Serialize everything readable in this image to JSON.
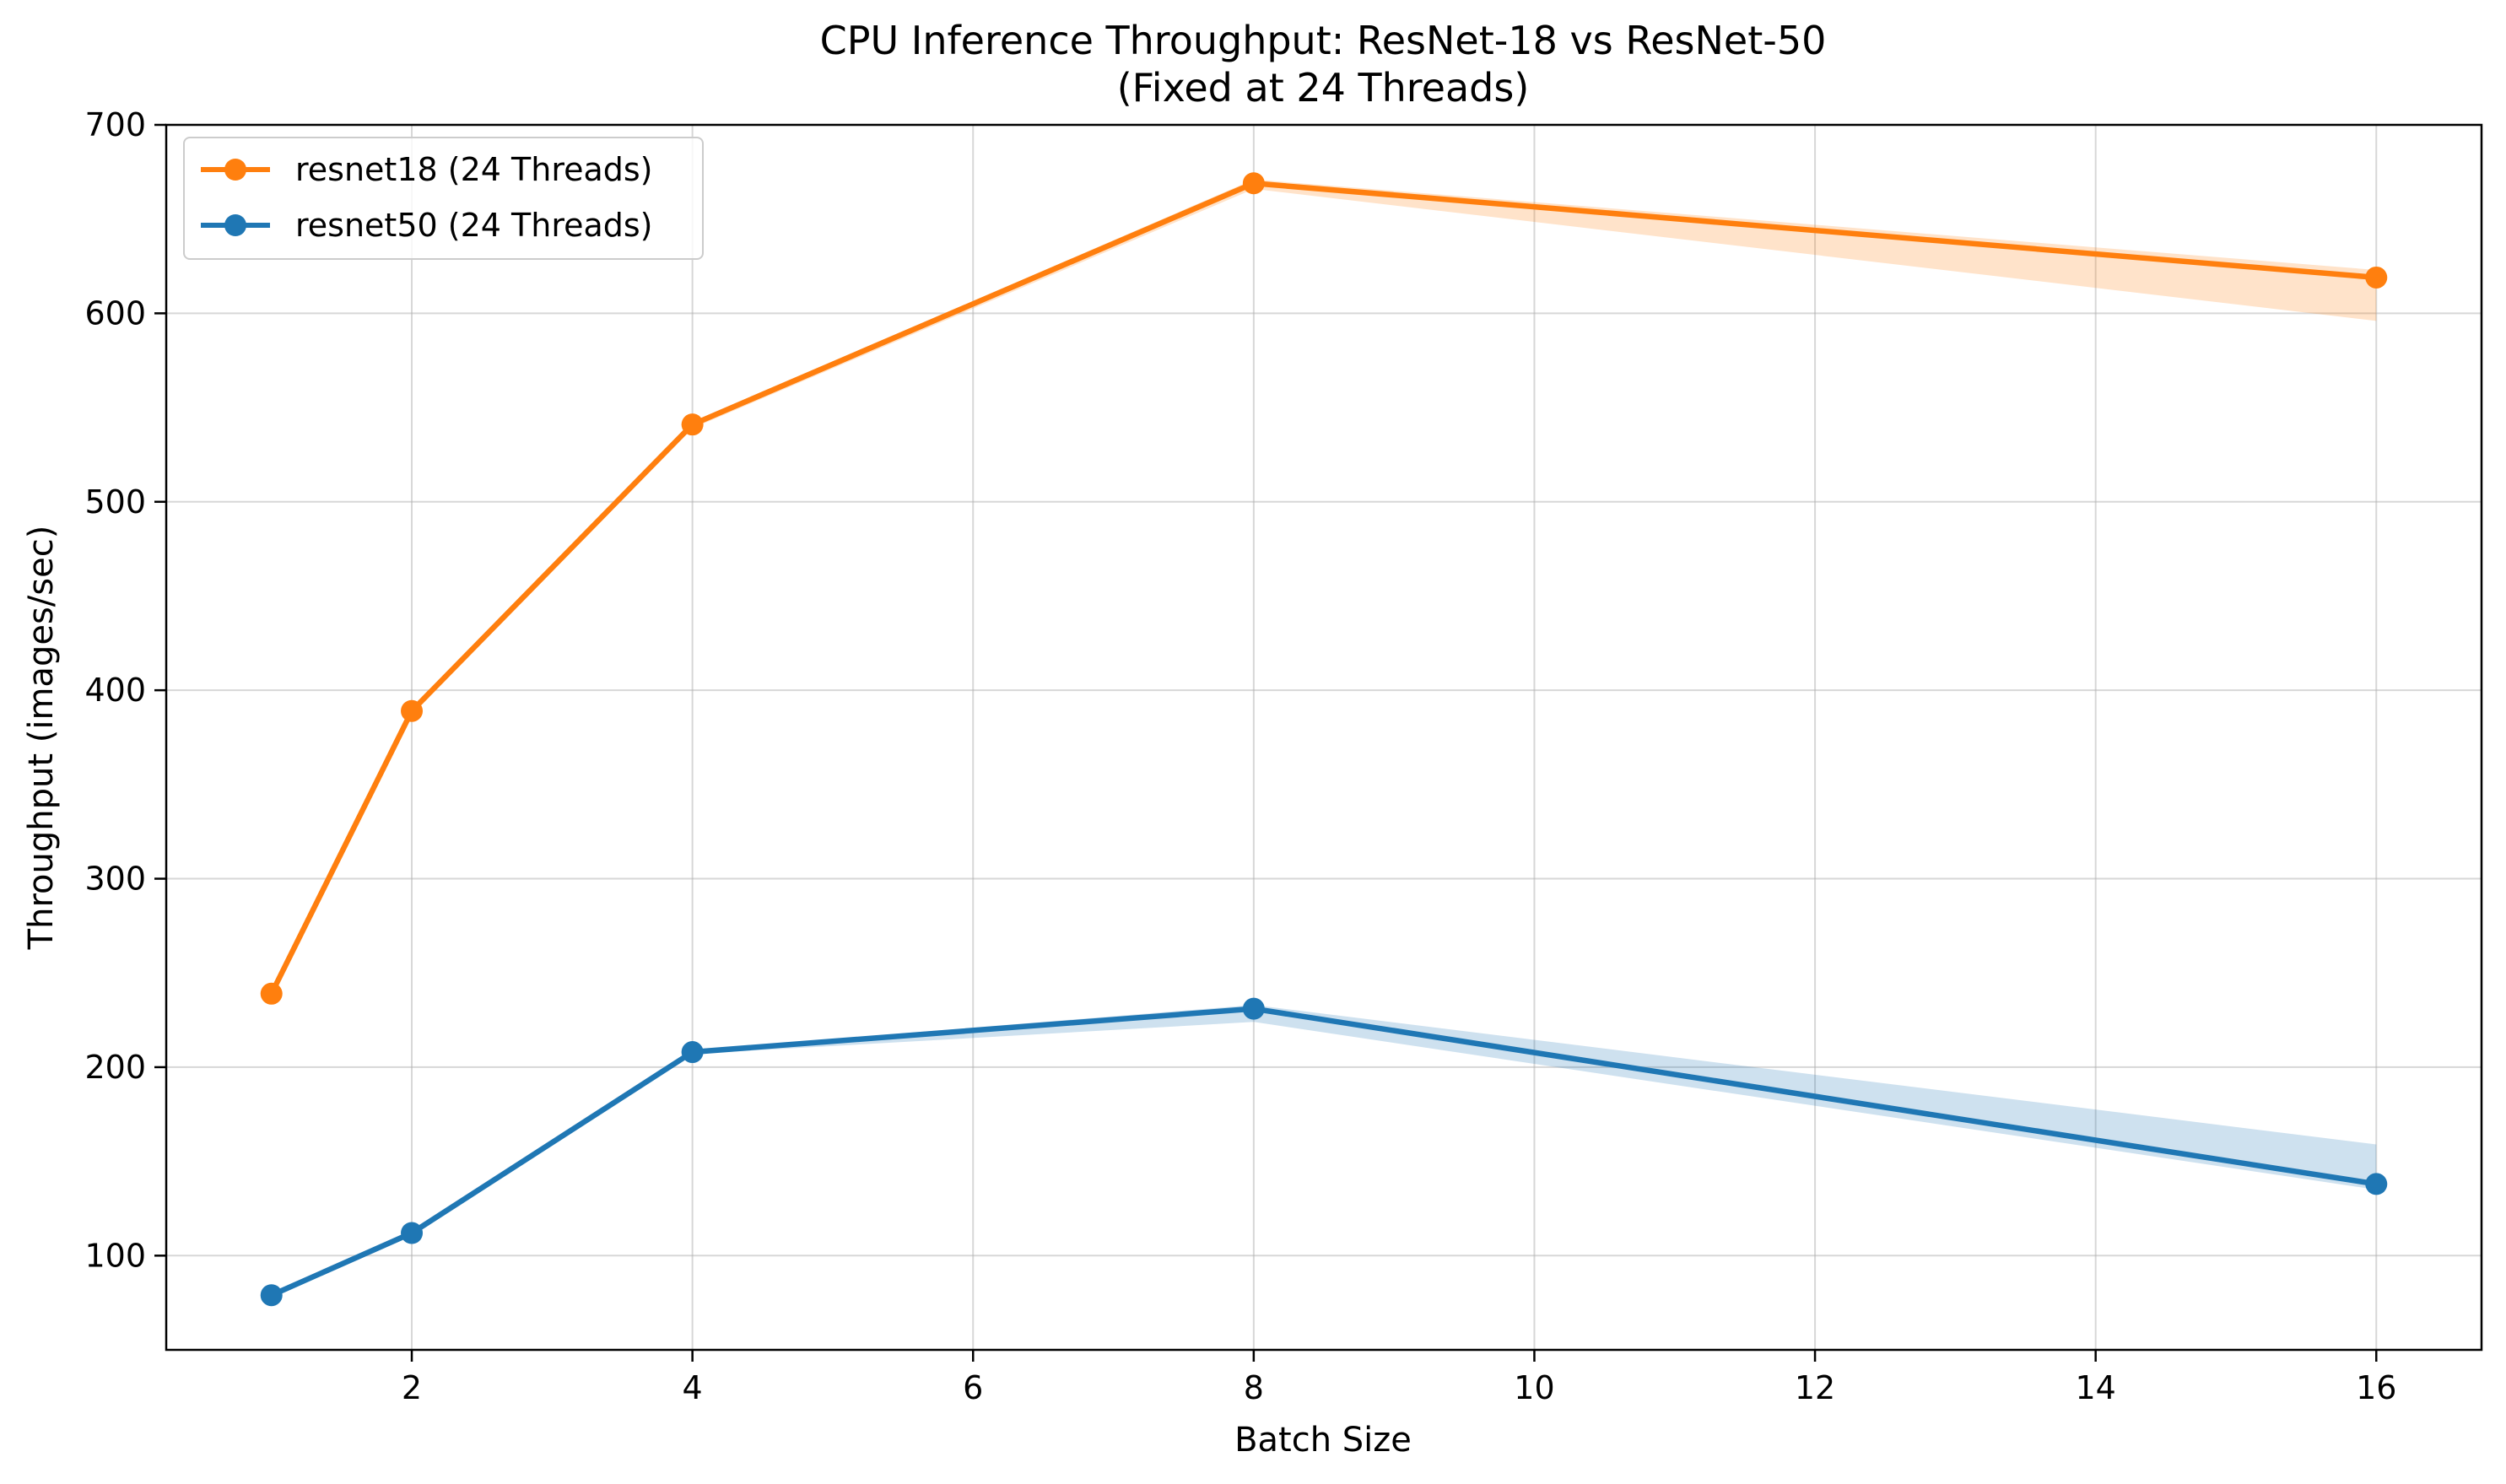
{
  "chart_data": {
    "type": "line",
    "title": "CPU Inference Throughput: ResNet-18 vs ResNet-50",
    "subtitle": "(Fixed at 24 Threads)",
    "xlabel": "Batch Size",
    "ylabel": "Throughput (images/sec)",
    "xlim": [
      0.25,
      16.75
    ],
    "ylim": [
      50,
      700
    ],
    "xticks": [
      2,
      4,
      6,
      8,
      10,
      12,
      14,
      16
    ],
    "yticks": [
      100,
      200,
      300,
      400,
      500,
      600,
      700
    ],
    "grid": true,
    "legend_position": "top-left",
    "x": [
      1,
      2,
      4,
      8,
      16
    ],
    "series": [
      {
        "name": "resnet18 (24 Threads)",
        "color": "#ff7f0e",
        "values": [
          239,
          389,
          541,
          669,
          619
        ],
        "band_low": [
          239,
          388,
          539,
          666,
          596
        ],
        "band_high": [
          240,
          390,
          542,
          671,
          623
        ]
      },
      {
        "name": "resnet50 (24 Threads)",
        "color": "#1f77b4",
        "values": [
          79,
          112,
          208,
          231,
          138
        ],
        "band_low": [
          79,
          112,
          207,
          224,
          135
        ],
        "band_high": [
          80,
          113,
          209,
          233,
          159
        ]
      }
    ]
  }
}
